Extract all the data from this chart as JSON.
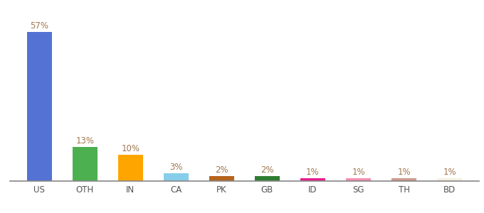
{
  "categories": [
    "US",
    "OTH",
    "IN",
    "CA",
    "PK",
    "GB",
    "ID",
    "SG",
    "TH",
    "BD"
  ],
  "values": [
    57,
    13,
    10,
    3,
    2,
    2,
    1,
    1,
    1,
    1
  ],
  "bar_colors": [
    "#5472d3",
    "#4caf50",
    "#ffa500",
    "#87ceeb",
    "#b5651d",
    "#2e7d32",
    "#e91e8c",
    "#f48fb1",
    "#cd9b8a",
    "#f5f0e0"
  ],
  "labels": [
    "57%",
    "13%",
    "10%",
    "3%",
    "2%",
    "2%",
    "1%",
    "1%",
    "1%",
    "1%"
  ],
  "ylim": [
    0,
    65
  ],
  "label_color": "#a07850",
  "label_fontsize": 8.5,
  "tick_fontsize": 8.5,
  "tick_color": "#555555",
  "background_color": "#ffffff",
  "bar_width": 0.55
}
